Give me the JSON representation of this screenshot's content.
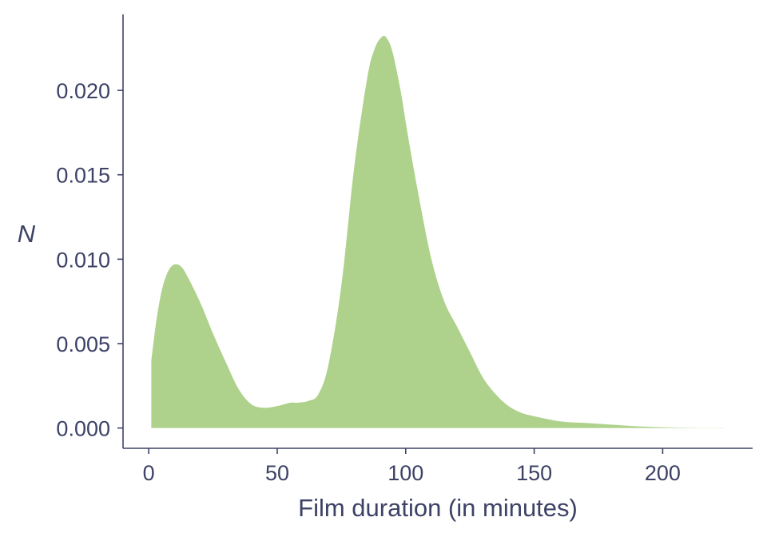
{
  "chart_data": {
    "type": "area",
    "title": "",
    "xlabel": "Film duration (in minutes)",
    "ylabel": "N",
    "xlim": [
      -10,
      235
    ],
    "ylim": [
      -0.0012,
      0.0245
    ],
    "xticks": [
      0,
      50,
      100,
      150,
      200
    ],
    "yticks": [
      0.0,
      0.005,
      0.01,
      0.015,
      0.02
    ],
    "xtick_labels": [
      "0",
      "50",
      "100",
      "150",
      "200"
    ],
    "ytick_labels": [
      "0.000",
      "0.005",
      "0.010",
      "0.015",
      "0.020"
    ],
    "grid": false,
    "legend": "none",
    "fill_color": "#aed28c",
    "axis_color": "#3d4266",
    "series": [
      {
        "x": [
          1,
          3,
          5,
          7,
          9,
          11,
          13,
          15,
          18,
          21,
          25,
          30,
          35,
          40,
          45,
          50,
          55,
          58,
          62,
          66,
          70,
          75,
          80,
          85,
          88,
          91,
          93,
          95,
          98,
          101,
          105,
          110,
          115,
          120,
          125,
          130,
          135,
          140,
          145,
          150,
          160,
          170,
          180,
          190,
          200,
          210,
          224
        ],
        "y": [
          0.004,
          0.0064,
          0.0081,
          0.0091,
          0.0096,
          0.0097,
          0.0095,
          0.009,
          0.0081,
          0.0071,
          0.0056,
          0.0039,
          0.0023,
          0.0014,
          0.0012,
          0.0013,
          0.0015,
          0.0015,
          0.0016,
          0.002,
          0.0038,
          0.0085,
          0.0155,
          0.0207,
          0.0225,
          0.0232,
          0.023,
          0.0222,
          0.02,
          0.0172,
          0.0138,
          0.01,
          0.0075,
          0.006,
          0.0045,
          0.003,
          0.002,
          0.0013,
          0.0009,
          0.0007,
          0.0004,
          0.0003,
          0.0002,
          0.0001,
          5e-05,
          2e-05,
          1e-05
        ]
      }
    ]
  }
}
